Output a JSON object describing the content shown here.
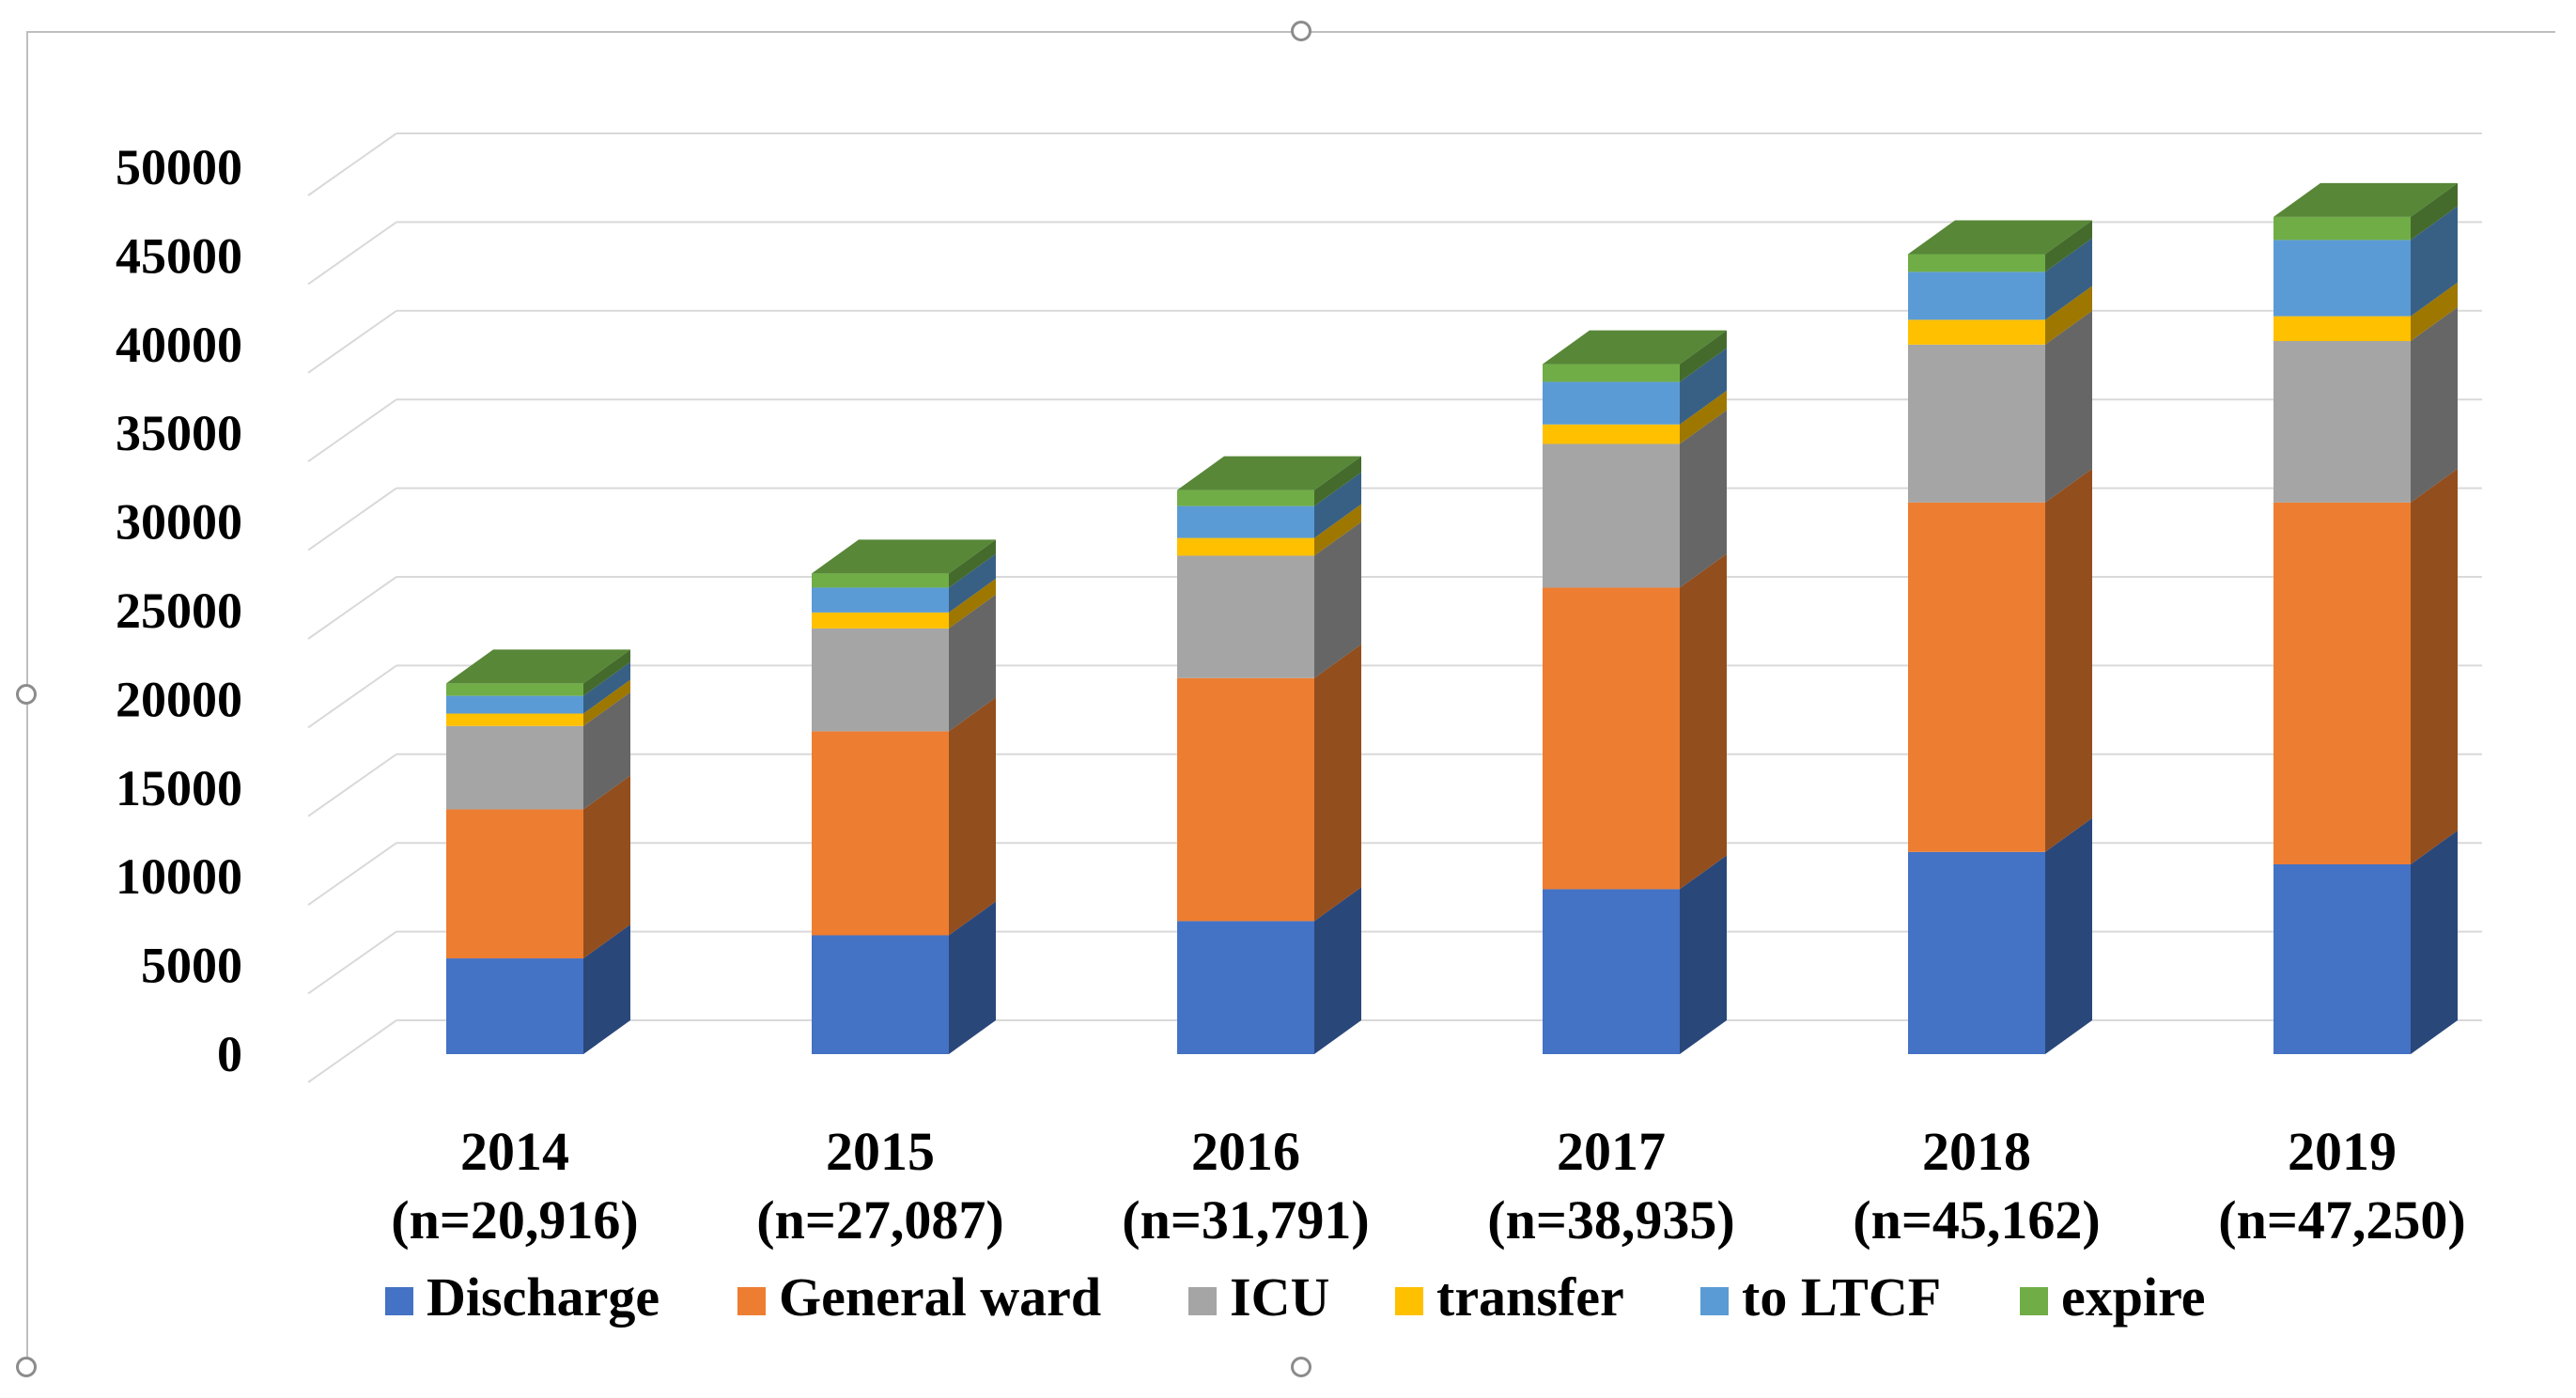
{
  "chart_data": {
    "type": "bar",
    "stacked": true,
    "three_d": true,
    "title": "",
    "xlabel": "",
    "ylabel": "",
    "ylim": [
      0,
      50000
    ],
    "y_ticks": [
      "0",
      "5000",
      "10000",
      "15000",
      "20000",
      "25000",
      "30000",
      "35000",
      "40000",
      "45000",
      "50000"
    ],
    "categories": [
      {
        "year": "2014",
        "n": "(n=20,916)"
      },
      {
        "year": "2015",
        "n": "(n=27,087)"
      },
      {
        "year": "2016",
        "n": "(n=31,791)"
      },
      {
        "year": "2017",
        "n": "(n=38,935)"
      },
      {
        "year": "2018",
        "n": "(n=45,162)"
      },
      {
        "year": "2019",
        "n": "(n=47,250)"
      }
    ],
    "series": [
      {
        "name": "Discharge",
        "color": "#4472c4",
        "values": [
          5400,
          6700,
          7500,
          9300,
          11400,
          10700
        ]
      },
      {
        "name": "General ward",
        "color": "#ed7d31",
        "values": [
          8400,
          11500,
          13700,
          17000,
          19700,
          20400
        ]
      },
      {
        "name": "ICU",
        "color": "#a5a5a5",
        "values": [
          4700,
          5800,
          6900,
          8100,
          8900,
          9100
        ]
      },
      {
        "name": "transfer",
        "color": "#ffc000",
        "values": [
          700,
          900,
          1000,
          1100,
          1400,
          1400
        ]
      },
      {
        "name": "to LTCF",
        "color": "#5b9bd5",
        "values": [
          1000,
          1400,
          1800,
          2400,
          2700,
          4300
        ]
      },
      {
        "name": "expire",
        "color": "#70ad47",
        "values": [
          700,
          800,
          900,
          1000,
          1000,
          1300
        ]
      }
    ],
    "legend_position": "bottom",
    "grid": true
  }
}
